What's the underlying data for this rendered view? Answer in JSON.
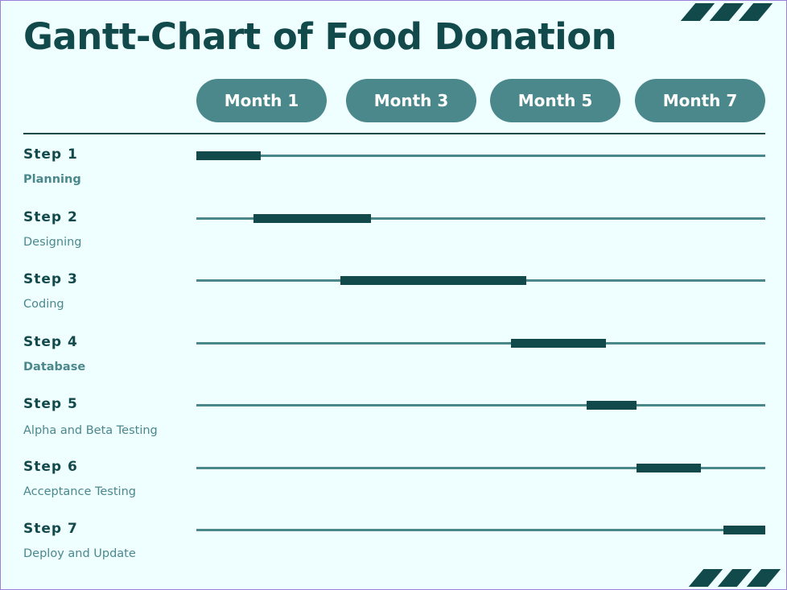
{
  "title": "Gantt-Chart of Food Donation",
  "colors": {
    "background": "#effeff",
    "dark_teal": "#124a4c",
    "mid_teal": "#4a888c",
    "pill_text": "#ffffff"
  },
  "decoration": "diagonal-stripes",
  "chart_data": {
    "type": "gantt",
    "title": "Gantt-Chart of Food Donation",
    "x_tick_labels": [
      "Month 1",
      "Month 3",
      "Month 5",
      "Month 7"
    ],
    "xlim": [
      1,
      8.5
    ],
    "tasks": [
      {
        "step": "Step 1",
        "label": "Planning",
        "label_bold": true,
        "start": 1.0,
        "end": 1.85
      },
      {
        "step": "Step 2",
        "label": "Designing",
        "label_bold": false,
        "start": 1.75,
        "end": 3.3
      },
      {
        "step": "Step 3",
        "label": "Coding",
        "label_bold": false,
        "start": 2.9,
        "end": 5.35
      },
      {
        "step": "Step 4",
        "label": "Database",
        "label_bold": true,
        "start": 5.15,
        "end": 6.4
      },
      {
        "step": "Step 5",
        "label": "Alpha and Beta Testing",
        "label_bold": false,
        "start": 6.15,
        "end": 6.8
      },
      {
        "step": "Step 6",
        "label": "Acceptance Testing",
        "label_bold": false,
        "start": 6.8,
        "end": 7.65
      },
      {
        "step": "Step 7",
        "label": "Deploy and Update",
        "label_bold": false,
        "start": 7.95,
        "end": 8.5
      }
    ]
  }
}
